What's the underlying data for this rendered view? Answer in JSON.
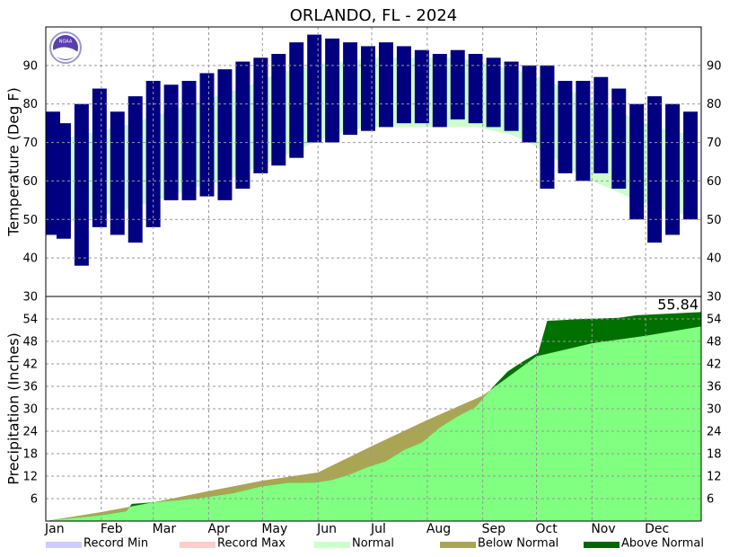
{
  "chart_data": [
    {
      "type": "range_bar",
      "title": "ORLANDO, FL - 2024",
      "y_label": "Temperature (Deg F)",
      "logo_text": "NOAA",
      "xlim": [
        0,
        366
      ],
      "xticks": [
        {
          "value": 0,
          "label": "Jan"
        },
        {
          "value": 31,
          "label": "Feb"
        },
        {
          "value": 60,
          "label": "Mar"
        },
        {
          "value": 91,
          "label": "Apr"
        },
        {
          "value": 121,
          "label": "May"
        },
        {
          "value": 152,
          "label": "Jun"
        },
        {
          "value": 182,
          "label": "Jul"
        },
        {
          "value": 213,
          "label": "Aug"
        },
        {
          "value": 244,
          "label": "Sep"
        },
        {
          "value": 274,
          "label": "Oct"
        },
        {
          "value": 305,
          "label": "Nov"
        },
        {
          "value": 335,
          "label": "Dec"
        }
      ],
      "ylim": [
        30,
        100
      ],
      "yticks": [
        30,
        40,
        50,
        60,
        70,
        80,
        90
      ],
      "grid": true,
      "x": [
        0,
        10,
        20,
        30,
        40,
        50,
        60,
        70,
        80,
        90,
        100,
        110,
        120,
        130,
        140,
        150,
        160,
        170,
        180,
        190,
        200,
        210,
        220,
        230,
        240,
        250,
        260,
        270,
        280,
        290,
        300,
        310,
        320,
        330,
        340,
        350,
        360
      ],
      "observed": {
        "color": "#000080",
        "high": [
          78,
          75,
          80,
          84,
          78,
          82,
          86,
          85,
          86,
          88,
          89,
          91,
          92,
          93,
          96,
          98,
          97,
          96,
          95,
          96,
          95,
          94,
          93,
          94,
          93,
          92,
          91,
          90,
          90,
          86,
          86,
          87,
          84,
          80,
          82,
          80,
          78
        ],
        "low": [
          46,
          45,
          38,
          48,
          46,
          44,
          48,
          55,
          55,
          56,
          55,
          58,
          62,
          64,
          66,
          70,
          70,
          72,
          73,
          74,
          75,
          75,
          74,
          76,
          75,
          74,
          73,
          70,
          58,
          62,
          60,
          62,
          58,
          50,
          44,
          46,
          50
        ]
      },
      "normal": {
        "color": "#ccffcc",
        "high": [
          71,
          71,
          72,
          73,
          74,
          75,
          77,
          78,
          80,
          81,
          83,
          84,
          86,
          88,
          89,
          90,
          91,
          91,
          92,
          92,
          92,
          92,
          92,
          92,
          91,
          90,
          89,
          88,
          86,
          84,
          82,
          80,
          78,
          76,
          74,
          73,
          72
        ],
        "low": [
          50,
          49,
          50,
          51,
          52,
          53,
          55,
          56,
          58,
          59,
          60,
          62,
          64,
          66,
          68,
          70,
          72,
          73,
          74,
          74,
          74,
          74,
          74,
          74,
          74,
          73,
          72,
          70,
          67,
          64,
          61,
          59,
          57,
          55,
          53,
          52,
          51
        ]
      }
    },
    {
      "type": "cumulative_area",
      "y_label": "Precipitation (Inches)",
      "ylim": [
        0,
        60
      ],
      "yticks": [
        6,
        12,
        18,
        24,
        30,
        36,
        42,
        48,
        54
      ],
      "grid": true,
      "observed": {
        "x": [
          0,
          15,
          30,
          45,
          48,
          60,
          75,
          90,
          105,
          120,
          135,
          150,
          160,
          170,
          180,
          190,
          200,
          210,
          220,
          230,
          240,
          250,
          258,
          266,
          275,
          280,
          300,
          320,
          330,
          366
        ],
        "values": [
          0,
          0.8,
          1.5,
          2.6,
          4.6,
          5.0,
          5.6,
          6.4,
          7.5,
          9.2,
          10.2,
          10.3,
          11,
          12.5,
          14.5,
          16,
          19,
          21,
          25,
          28,
          30.5,
          36,
          40,
          42.5,
          45,
          53.5,
          54,
          54.3,
          55,
          55.84
        ]
      },
      "normal": {
        "x": [
          0,
          31,
          60,
          91,
          121,
          152,
          182,
          213,
          244,
          274,
          305,
          335,
          366
        ],
        "values": [
          0,
          2.4,
          5,
          8,
          10.8,
          13,
          20,
          27,
          33.5,
          44,
          47.5,
          49.5,
          52
        ]
      },
      "colors": {
        "below": "#aaa555",
        "above": "#007000",
        "base": "#80ff80"
      },
      "annotation": "55.84",
      "legend": [
        {
          "label": "Record Min",
          "color": "#ccccff"
        },
        {
          "label": "Record Max",
          "color": "#ffcccc"
        },
        {
          "label": "Normal",
          "color": "#ccffcc"
        },
        {
          "label": "Below Normal",
          "color": "#aaa555"
        },
        {
          "label": "Above Normal",
          "color": "#006600"
        }
      ]
    }
  ]
}
